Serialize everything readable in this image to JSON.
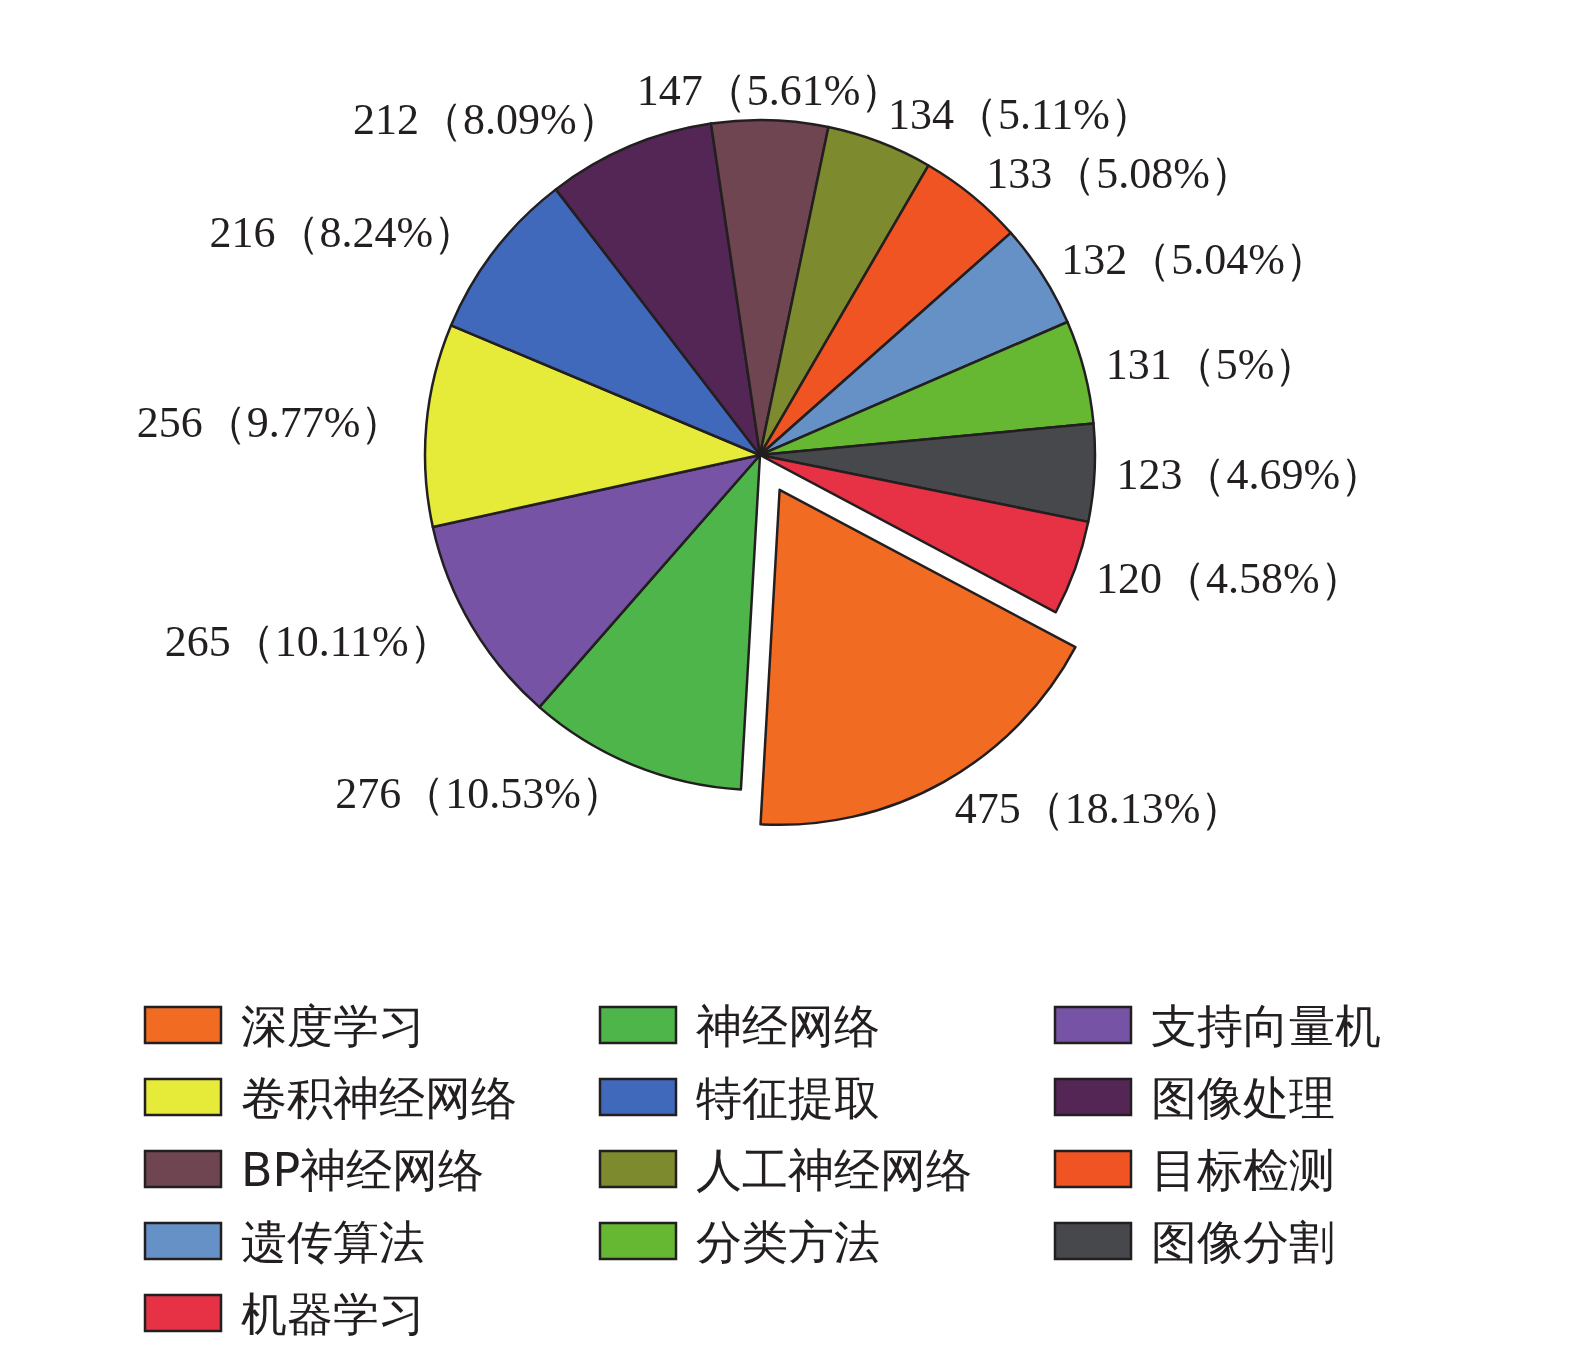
{
  "chart_data": {
    "type": "pie",
    "legend": "bottom",
    "categories": [
      "深度学习",
      "神经网络",
      "支持向量机",
      "卷积神经网络",
      "特征提取",
      "图像处理",
      "BP神经网络",
      "人工神经网络",
      "目标检测",
      "遗传算法",
      "分类方法",
      "图像分割",
      "机器学习"
    ],
    "values": [
      475,
      276,
      265,
      256,
      216,
      212,
      147,
      134,
      133,
      132,
      131,
      123,
      120
    ],
    "colors": [
      "#f26b22",
      "#4db54a",
      "#7653a5",
      "#e5eb38",
      "#4169bb",
      "#532655",
      "#6e4550",
      "#7e8a2e",
      "#f05423",
      "#6591c6",
      "#66b731",
      "#47484c",
      "#e73245"
    ],
    "value_labels": [
      "475（18.13%）",
      "276（10.53%）",
      "265（10.11%）",
      "256（9.77%）",
      "216（8.24%）",
      "212（8.09%）",
      "147（5.61%）",
      "134（5.11%）",
      "133（5.08%）",
      "132（5.04%）",
      "131（5%）",
      "123（4.69%）",
      "120（4.58%）"
    ]
  }
}
